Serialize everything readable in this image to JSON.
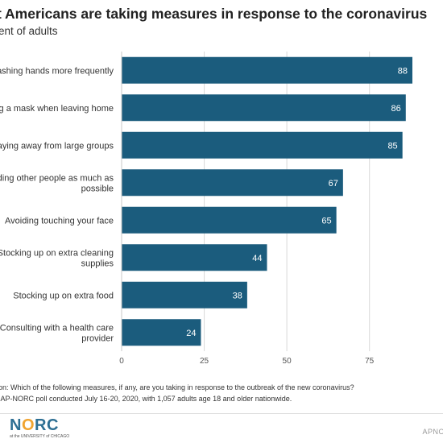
{
  "header": {
    "title": "t Americans are taking measures in response to the coronavirus",
    "subtitle": "ent of adults"
  },
  "chart_data": {
    "type": "bar",
    "orientation": "horizontal",
    "categories": [
      [
        "ashing hands more frequently"
      ],
      [
        "g a mask when leaving home"
      ],
      [
        "aying away from large groups"
      ],
      [
        "ding other people as much as",
        "possible"
      ],
      [
        "Avoiding touching your face"
      ],
      [
        "Stocking up on extra cleaning",
        "supplies"
      ],
      [
        "Stocking up on extra food"
      ],
      [
        "Consulting with a health care",
        "provider"
      ]
    ],
    "values": [
      88,
      86,
      85,
      67,
      65,
      44,
      38,
      24
    ],
    "xticks": [
      0,
      25,
      50,
      75
    ],
    "xlim": [
      0,
      88
    ],
    "bar_color": "#1b5c7d",
    "grid": true,
    "data_labels": true
  },
  "notes": {
    "question": "ion: Which of the following measures, if any, are you taking in response to the outbreak of the new coronavirus?",
    "source": ": AP-NORC poll conducted July 16-20, 2020, with 1,057 adults age 18 and older nationwide."
  },
  "footer": {
    "logo_n": "N",
    "logo_o": "O",
    "logo_rc": "RC",
    "logo_sub": "at the UNIVERSITY of CHICAGO",
    "brand_right": "APNO"
  }
}
